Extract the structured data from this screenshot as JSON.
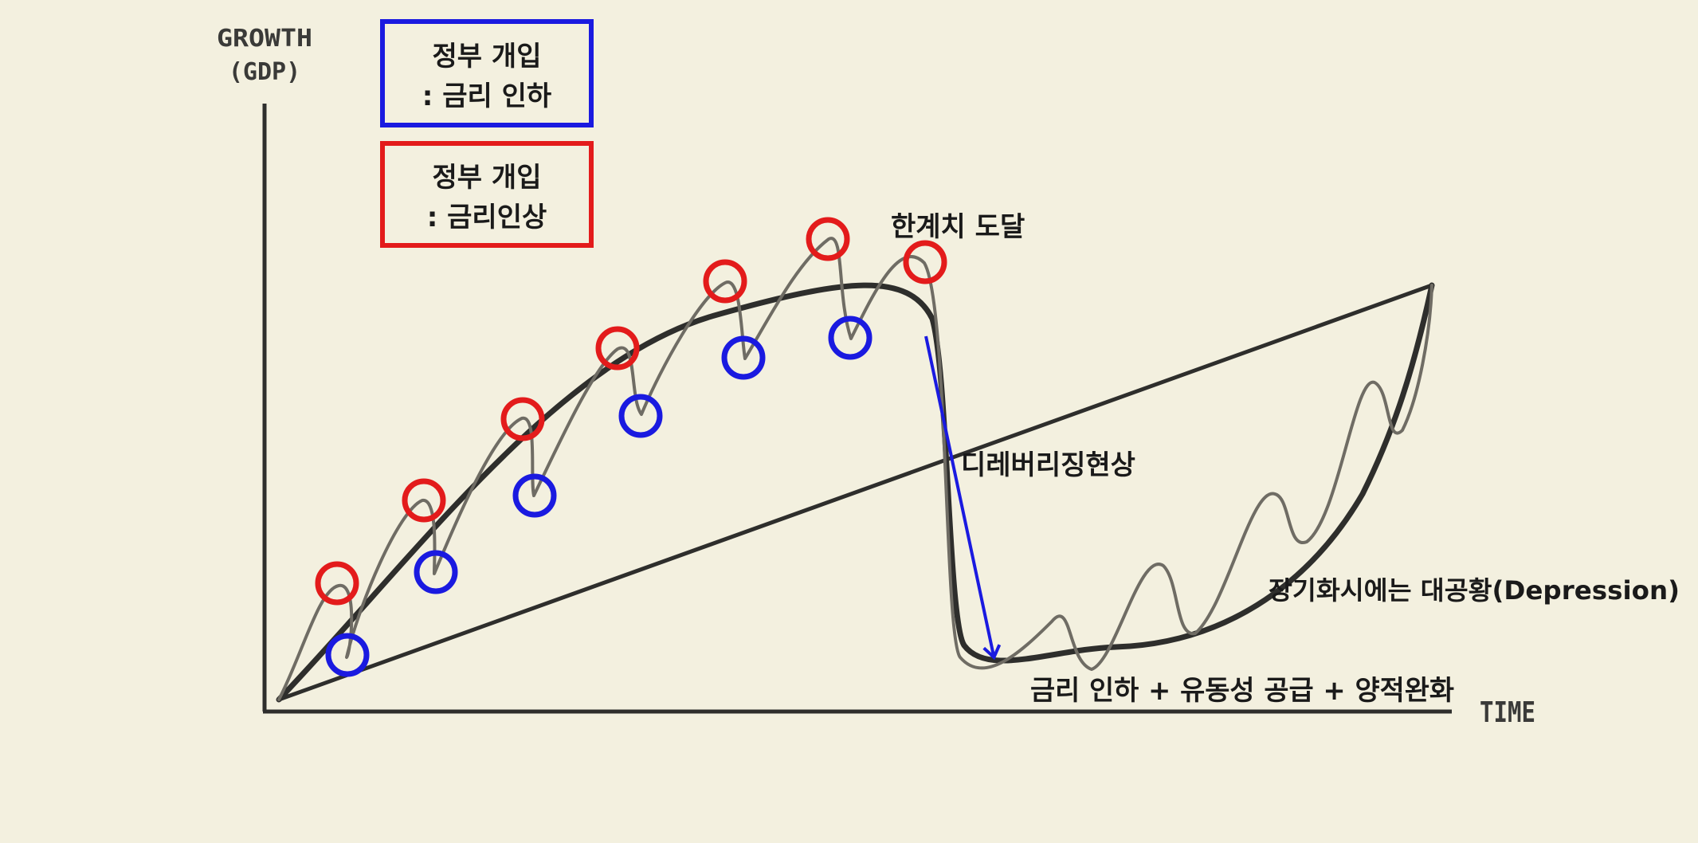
{
  "axes": {
    "y_label_line1": "GROWTH",
    "y_label_line2": "(GDP)",
    "x_label": "TIME"
  },
  "legend": {
    "blue_line1": "정부 개입",
    "blue_line2": ": 금리 인하",
    "red_line1": "정부 개입",
    "red_line2": ": 금리인상"
  },
  "annotations": {
    "threshold": "한계치 도달",
    "deleveraging": "디레버리징현상",
    "depression": "장기화시에는 대공황(Depression)",
    "policy": "금리 인하 + 유동성 공급 + 양적완화"
  },
  "colors": {
    "background": "#f3f0df",
    "curve": "#2e2e2c",
    "red_marker": "#e31b1b",
    "blue_marker": "#1a1ae0",
    "arrow": "#1a1ae0"
  }
}
